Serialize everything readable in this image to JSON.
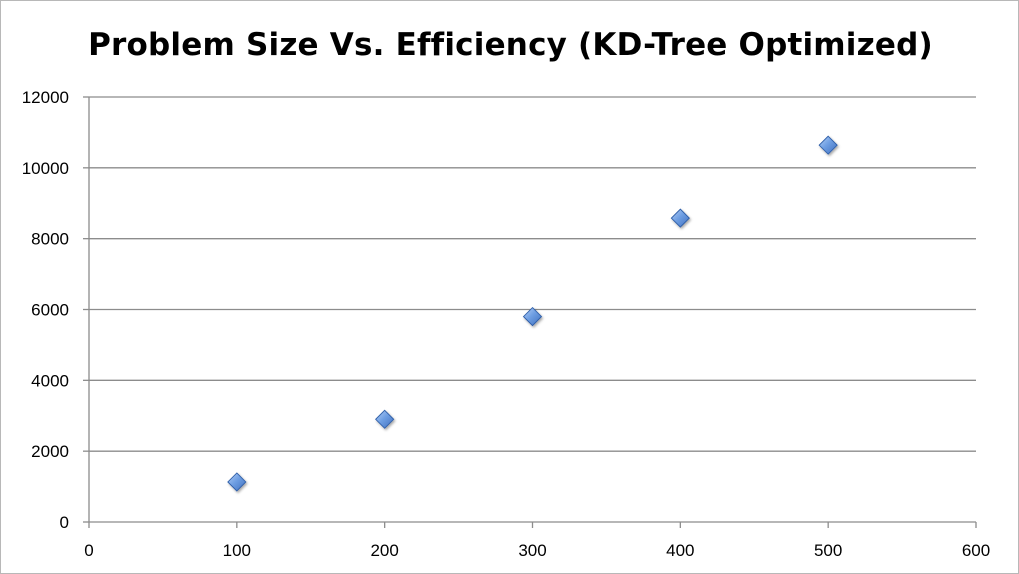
{
  "chart_data": {
    "type": "scatter",
    "title": "Problem Size Vs. Efficiency (KD-Tree Optimized)",
    "xlabel": "",
    "ylabel": "",
    "xlim": [
      0,
      600
    ],
    "ylim": [
      0,
      12000
    ],
    "x_ticks": [
      0,
      100,
      200,
      300,
      400,
      500,
      600
    ],
    "y_ticks": [
      0,
      2000,
      4000,
      6000,
      8000,
      10000,
      12000
    ],
    "x_tick_labels": [
      "0",
      "100",
      "200",
      "300",
      "400",
      "500",
      "600"
    ],
    "y_tick_labels": [
      "0",
      "2000",
      "4000",
      "6000",
      "8000",
      "10000",
      "12000"
    ],
    "grid": "horizontal",
    "legend": "none",
    "marker": "diamond",
    "series": [
      {
        "color": "#5b8fd9",
        "x": [
          100,
          200,
          300,
          400,
          500
        ],
        "y": [
          1130,
          2900,
          5800,
          8580,
          10640
        ]
      }
    ]
  }
}
